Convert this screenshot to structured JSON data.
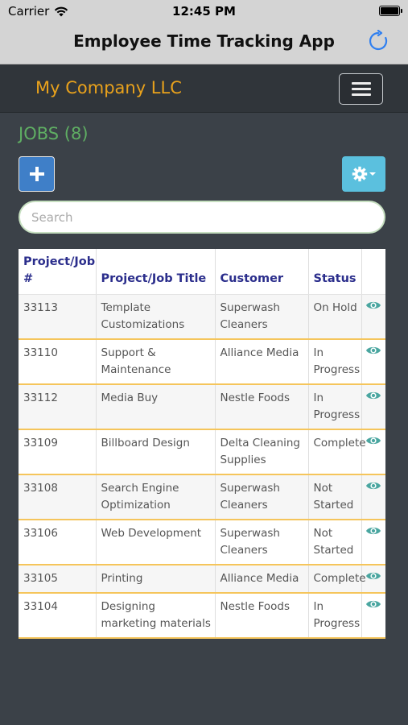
{
  "status_bar": {
    "carrier": "Carrier",
    "time": "12:45 PM"
  },
  "nav": {
    "title": "Employee Time Tracking App",
    "refresh_icon": "refresh-icon"
  },
  "header": {
    "company": "My Company LLC",
    "menu_icon": "hamburger-icon"
  },
  "jobs": {
    "title": "JOBS (8)"
  },
  "toolbar": {
    "add_icon": "plus-icon",
    "settings_icon": "gear-icon"
  },
  "search": {
    "placeholder": "Search",
    "value": ""
  },
  "table": {
    "headers": [
      "Project/Job #",
      "Project/Job Title",
      "Customer",
      "Status",
      ""
    ],
    "rows": [
      {
        "number": "33113",
        "title": "Template Customizations",
        "customer": "Superwash Cleaners",
        "status": "On Hold"
      },
      {
        "number": "33110",
        "title": "Support & Maintenance",
        "customer": "Alliance Media",
        "status": "In Progress"
      },
      {
        "number": "33112",
        "title": "Media Buy",
        "customer": "Nestle Foods",
        "status": "In Progress"
      },
      {
        "number": "33109",
        "title": "Billboard Design",
        "customer": "Delta Cleaning Supplies",
        "status": "Complete"
      },
      {
        "number": "33108",
        "title": "Search Engine Optimization",
        "customer": "Superwash Cleaners",
        "status": "Not Started"
      },
      {
        "number": "33106",
        "title": "Web Development",
        "customer": "Superwash Cleaners",
        "status": "Not Started"
      },
      {
        "number": "33105",
        "title": "Printing",
        "customer": "Alliance Media",
        "status": "Complete"
      },
      {
        "number": "33104",
        "title": "Designing marketing materials",
        "customer": "Nestle Foods",
        "status": "In Progress"
      }
    ]
  },
  "colors": {
    "company": "#e9a21c",
    "jobs_title": "#5fae63",
    "add_button": "#3f7fc8",
    "settings_button": "#5bc0de",
    "header_text": "#2b2e8c",
    "row_divider": "#f5c55b",
    "eye_icon": "#4aa6a0"
  }
}
